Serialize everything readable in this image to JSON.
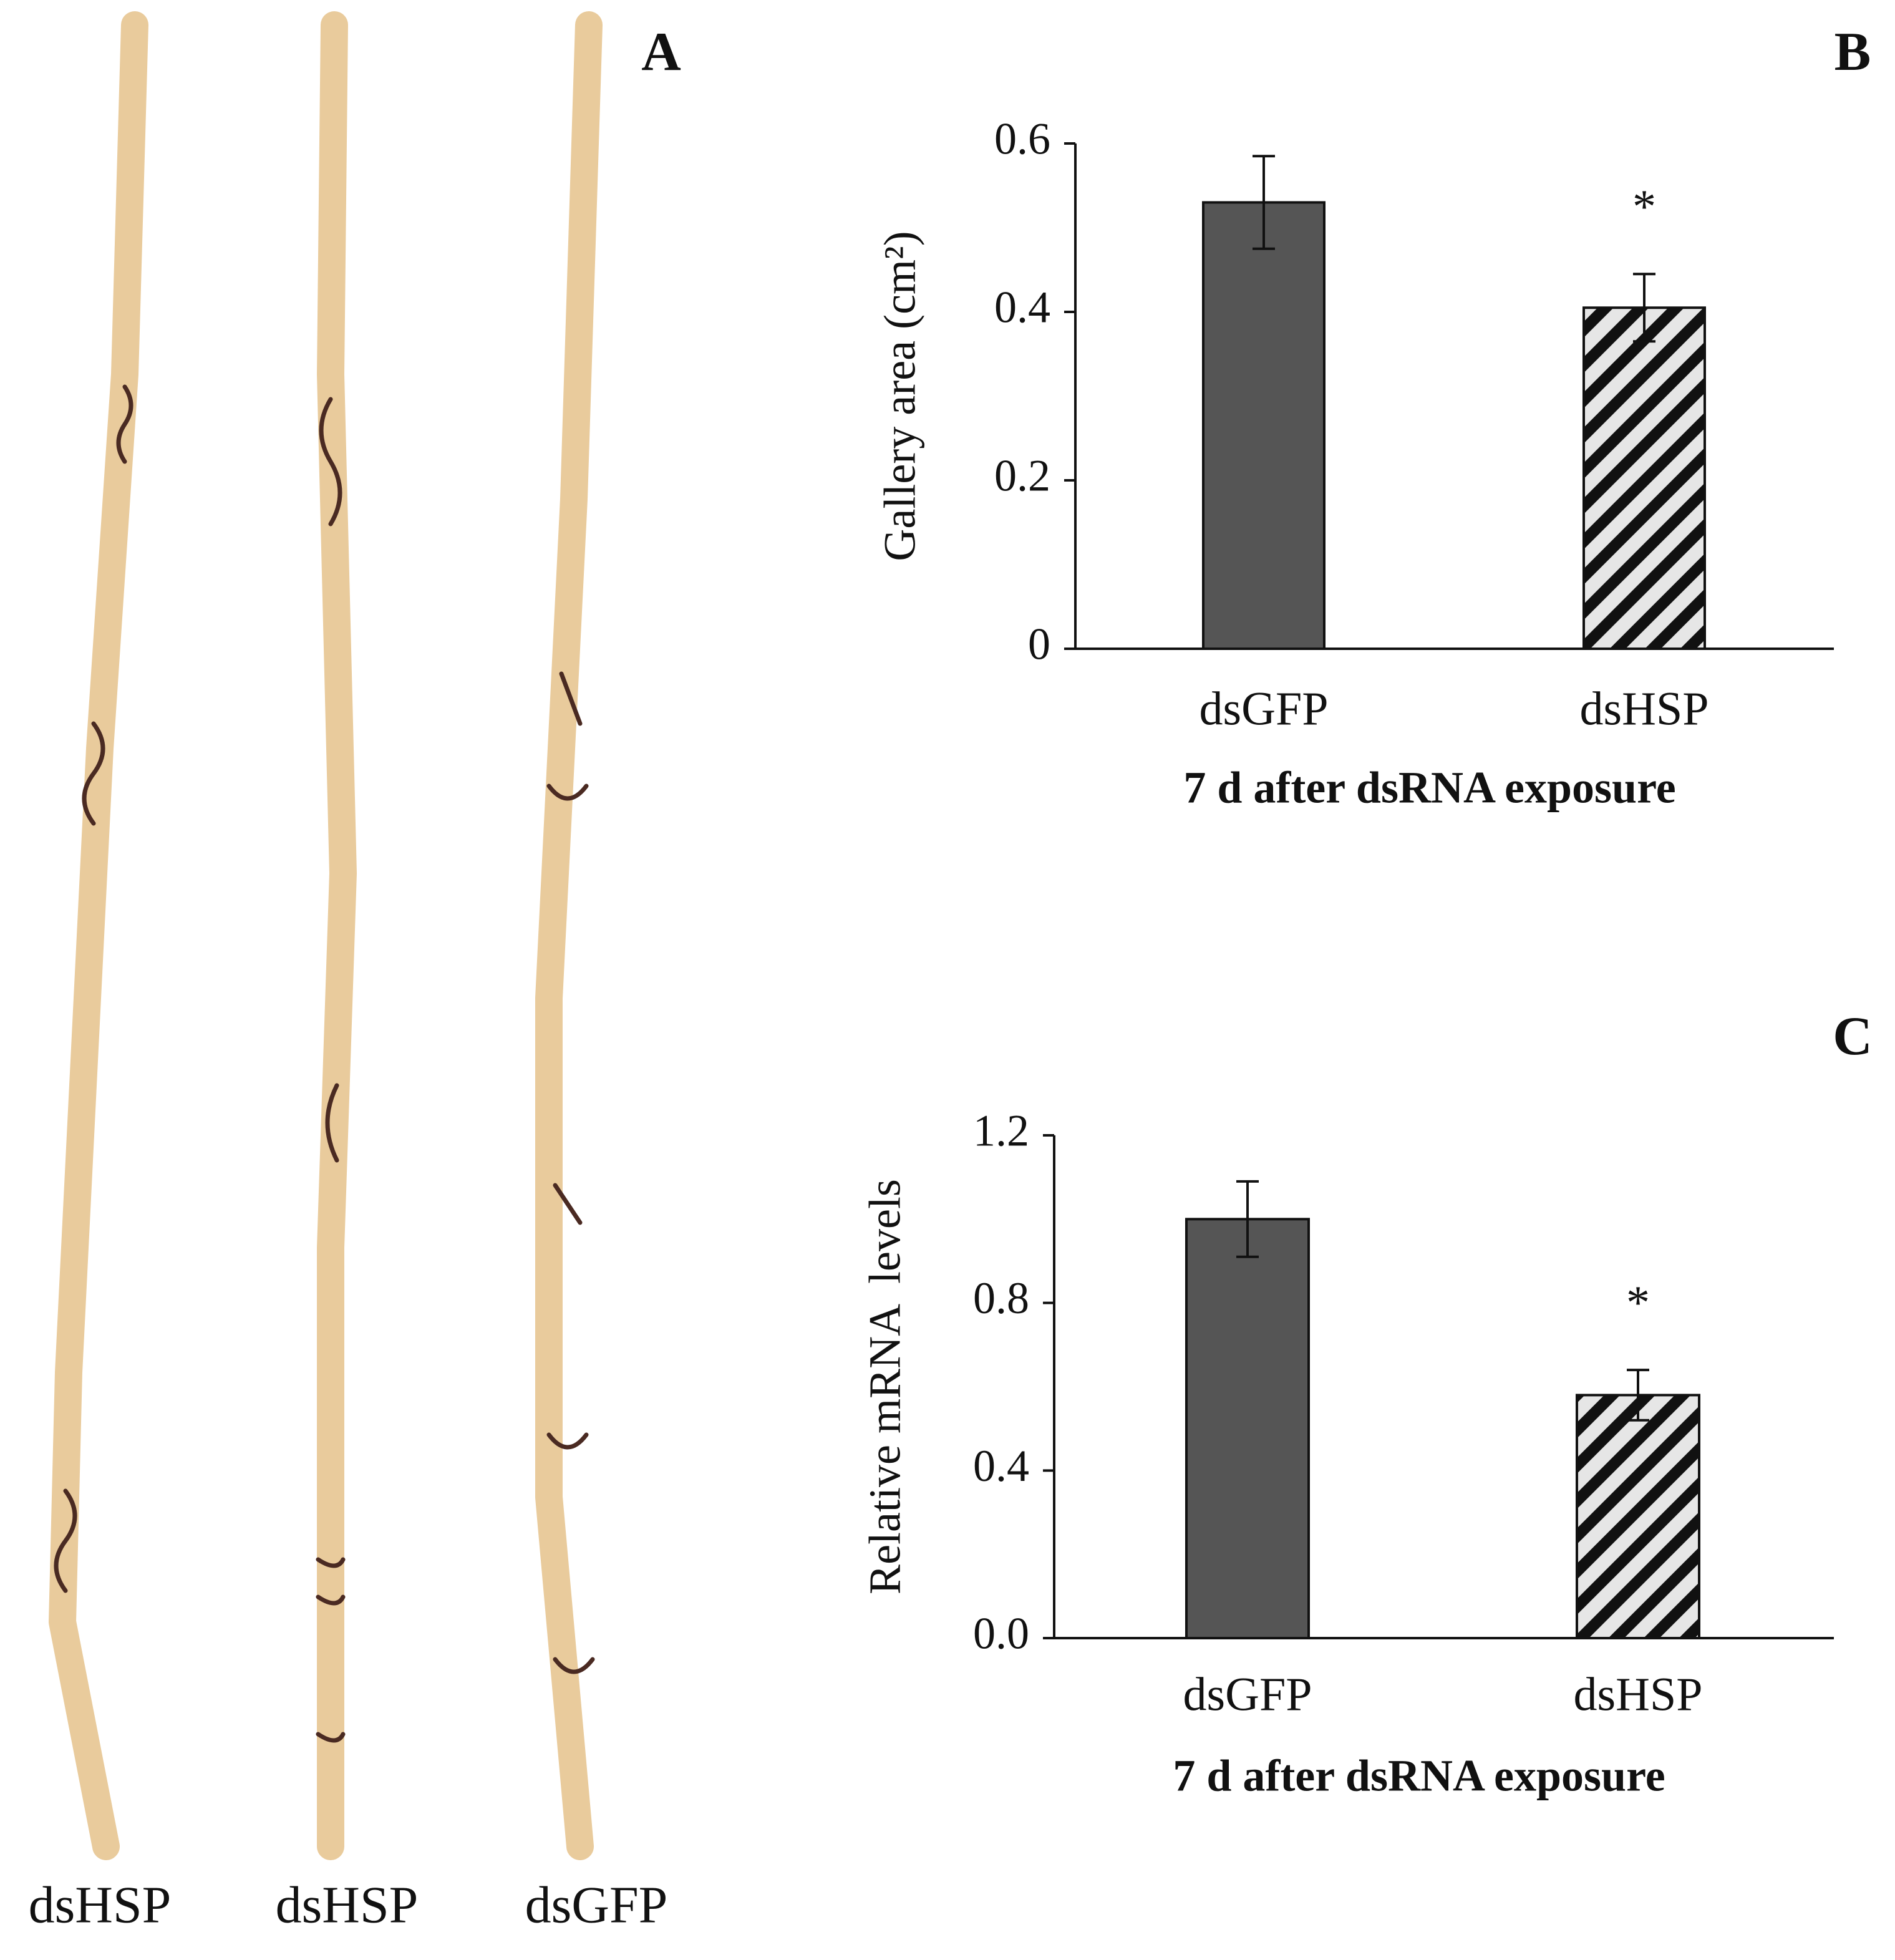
{
  "photo": {
    "panel_label": "A",
    "captions": [
      "dsHSP",
      "dsHSP",
      "dsGFP"
    ]
  },
  "chart_data": [
    {
      "type": "bar",
      "panel_label": "B",
      "x_label": "7 d after dsRNA exposure",
      "y_label": "Gallery area (cm²)",
      "categories": [
        "dsGFP",
        "dsHSP"
      ],
      "values": [
        0.53,
        0.405
      ],
      "errors": [
        0.055,
        0.04
      ],
      "significance": [
        null,
        "*"
      ],
      "color": "#555555",
      "bar_styles": [
        "solid",
        "diagonal-hatch"
      ],
      "ylim": [
        0,
        0.6
      ],
      "yticks": [
        0,
        0.2,
        0.4,
        0.6
      ]
    },
    {
      "type": "bar",
      "panel_label": "C",
      "x_label": "7 d after dsRNA exposure",
      "y_label": "Relative mRNA  levels",
      "categories": [
        "dsGFP",
        "dsHSP"
      ],
      "values": [
        1.0,
        0.58
      ],
      "errors": [
        0.09,
        0.06
      ],
      "significance": [
        null,
        "*"
      ],
      "color": "#555555",
      "bar_styles": [
        "solid",
        "diagonal-hatch"
      ],
      "ylim": [
        0,
        1.2
      ],
      "yticks": [
        {
          "value": 0,
          "label": "0.0"
        },
        0.4,
        0.8,
        1.2
      ]
    }
  ]
}
